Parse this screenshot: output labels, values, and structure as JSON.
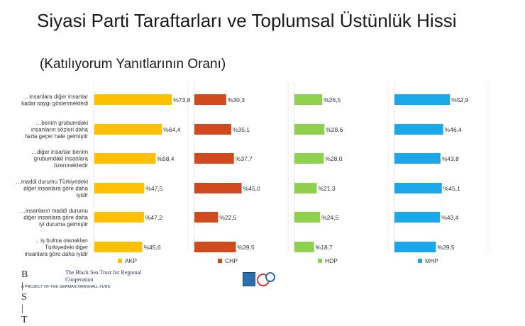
{
  "title": "Siyasi Parti Taraftarları ve Toplumsal Üstünlük Hissi",
  "subtitle": "(Katılıyorum Yanıtlarının Oranı)",
  "chart_data": {
    "type": "bar",
    "orientation": "horizontal",
    "grid": false,
    "legend": "bottom",
    "categories": [
      "… insanlara diğer insanlar kadar saygı göstermektedi",
      "…benim grubumdaki insanların sözleri daha fazla geçer hale gelmiştir",
      "…diğer insanlar benim grubumdaki insanlara özenmektedir",
      "…maddi durumu Türkiyedeki diğer insanlara göre daha iyidir",
      "…insanların maddi durumu diğer insanlara göre daha iyi duruma gelmiştir",
      ".. iş bulma olanakları Türkiyedeki diğer insanlara göre daha iyidir"
    ],
    "series": [
      {
        "name": "AKP",
        "color": "#FFC000",
        "values": [
          73.8,
          64.4,
          58.4,
          47.5,
          47.2,
          45.6
        ],
        "labels": [
          "%73,8",
          "%64,4",
          "%58,4",
          "%47,5",
          "%47,2",
          "%45,6"
        ]
      },
      {
        "name": "CHP",
        "color": "#D04A1E",
        "values": [
          30.3,
          35.1,
          37.7,
          45.0,
          22.5,
          39.5
        ],
        "labels": [
          "%30,3",
          "%35,1",
          "%37,7",
          "%45,0",
          "%22,5",
          "%39,5"
        ]
      },
      {
        "name": "HDP",
        "color": "#8FD14F",
        "values": [
          26.5,
          28.6,
          28.0,
          21.3,
          24.5,
          18.7
        ],
        "labels": [
          "%26,5",
          "%28,6",
          "%28,0",
          "%21,3",
          "%24,5",
          "%18,7"
        ]
      },
      {
        "name": "MHP",
        "color": "#1CA7E8",
        "values": [
          52.9,
          46.4,
          43.8,
          45.1,
          43.4,
          39.5
        ],
        "labels": [
          "%52,9",
          "%46,4",
          "%43,8",
          "%45,1",
          "%43,4",
          "%39,5"
        ]
      }
    ]
  },
  "footer": {
    "bst": "B | S | T",
    "org": "The Black Sea Trust for Regional Cooperation",
    "project": "A PROJECT OF THE GERMAN MARSHALL FUND"
  }
}
